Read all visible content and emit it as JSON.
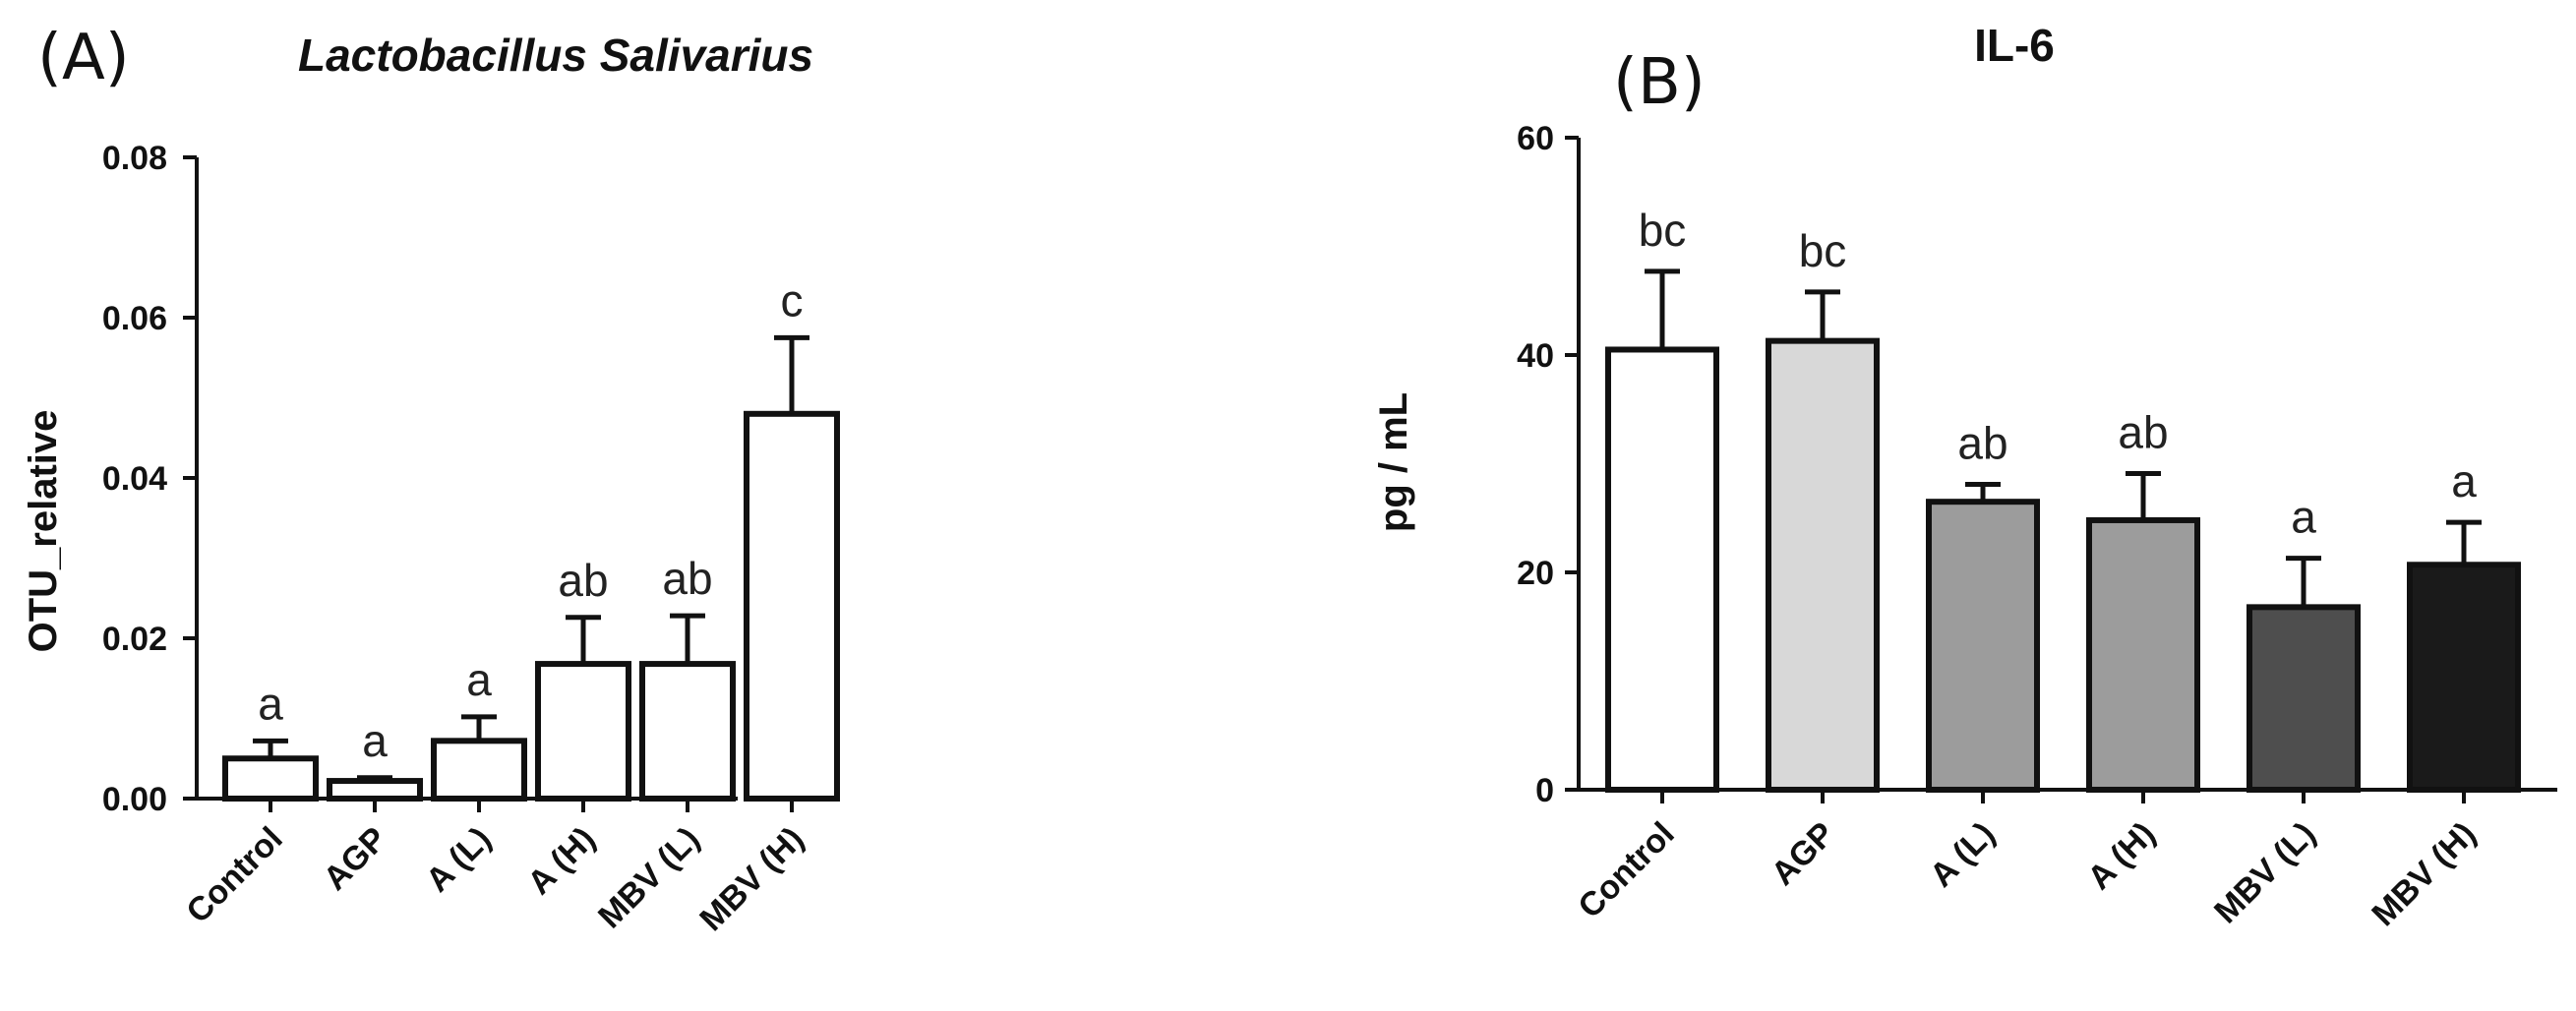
{
  "chart_data": [
    {
      "panel": "(A)",
      "type": "bar",
      "title": "Lactobacillus Salivarius",
      "ylabel": "OTU_relative",
      "xlabel": "",
      "ylim": [
        0,
        0.08
      ],
      "yticks": [
        "0.00",
        "0.02",
        "0.04",
        "0.06",
        "0.08"
      ],
      "categories": [
        "Control",
        "AGP",
        "A (L)",
        "A (H)",
        "MBV (L)",
        "MBV (H)"
      ],
      "values": [
        0.005,
        0.0022,
        0.0072,
        0.0168,
        0.0168,
        0.048
      ],
      "errors": [
        0.0022,
        0.0004,
        0.003,
        0.0058,
        0.006,
        0.0095
      ],
      "significance": [
        "a",
        "a",
        "a",
        "ab",
        "ab",
        "c"
      ],
      "bar_colors": [
        "#ffffff",
        "#ffffff",
        "#ffffff",
        "#ffffff",
        "#ffffff",
        "#ffffff"
      ]
    },
    {
      "panel": "(B)",
      "type": "bar",
      "title": "IL-6",
      "ylabel": "pg / mL",
      "xlabel": "",
      "ylim": [
        0,
        60
      ],
      "yticks": [
        "0",
        "20",
        "40",
        "60"
      ],
      "categories": [
        "Control",
        "AGP",
        "A (L)",
        "A (H)",
        "MBV (L)",
        "MBV (H)"
      ],
      "values": [
        40.5,
        41.3,
        26.5,
        24.8,
        16.8,
        20.7
      ],
      "errors": [
        7.2,
        4.5,
        1.6,
        4.3,
        4.5,
        3.9
      ],
      "significance": [
        "bc",
        "bc",
        "ab",
        "ab",
        "a",
        "a"
      ],
      "bar_colors": [
        "#ffffff",
        "#d8d8d8",
        "#9c9c9c",
        "#9c9c9c",
        "#4e4e4e",
        "#1a1a1a"
      ]
    }
  ]
}
